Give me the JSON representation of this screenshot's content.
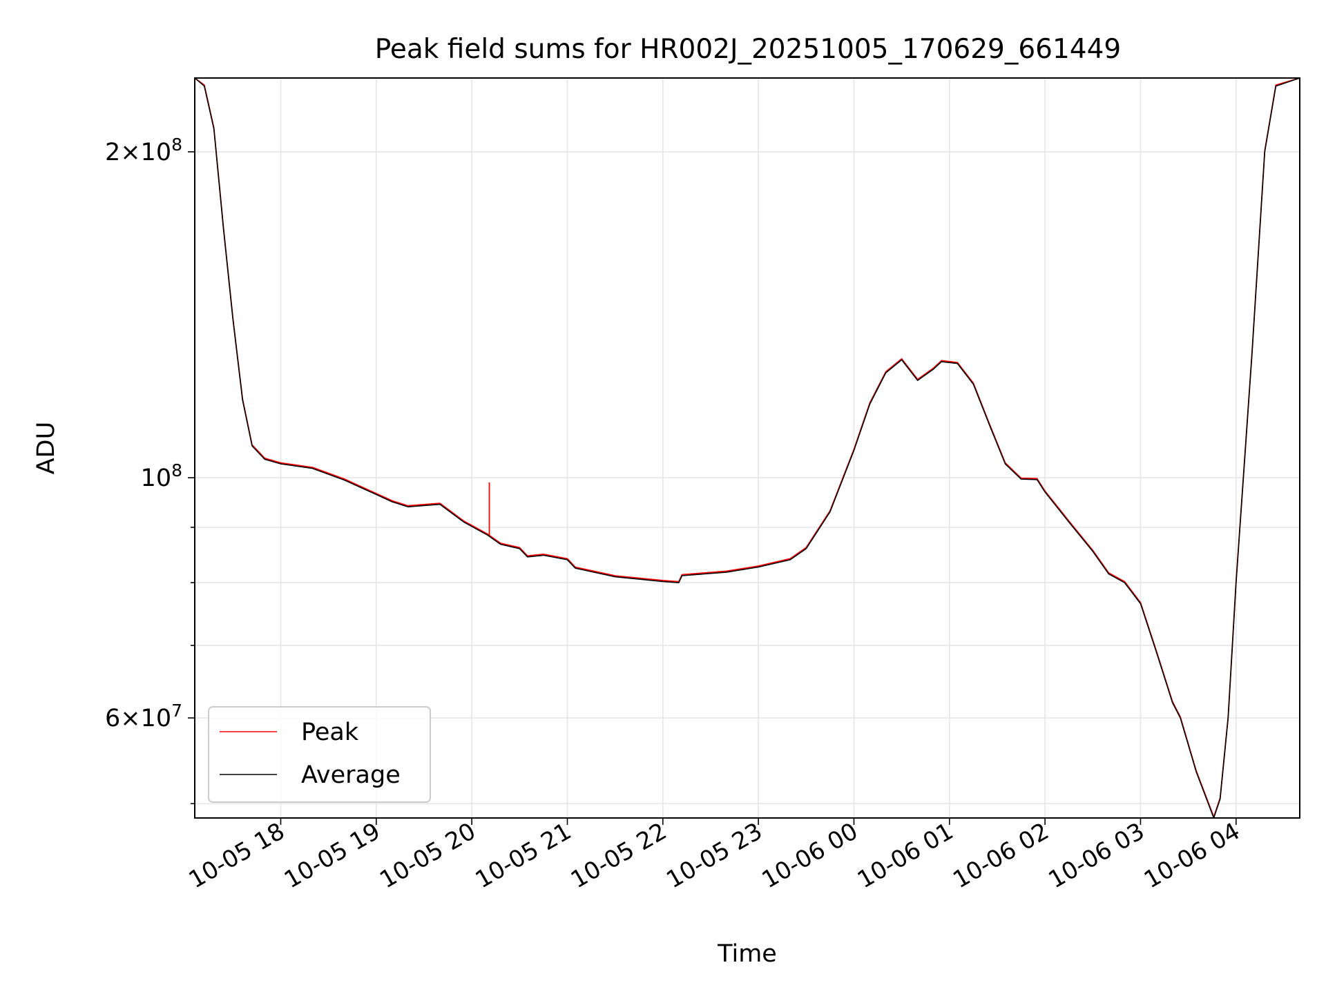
{
  "chart_data": {
    "type": "line",
    "title": "Peak field sums for HR002J_20251005_170629_661449",
    "xlabel": "Time",
    "ylabel": "ADU",
    "x_axis": {
      "type": "datetime",
      "range": [
        "2025-10-05 17:06",
        "2025-10-06 04:40"
      ],
      "tick_labels": [
        "10-05 18",
        "10-05 19",
        "10-05 20",
        "10-05 21",
        "10-05 22",
        "10-05 23",
        "10-06 00",
        "10-06 01",
        "10-06 02",
        "10-06 03",
        "10-06 04"
      ],
      "tick_values": [
        "2025-10-05 18:00",
        "2025-10-05 19:00",
        "2025-10-05 20:00",
        "2025-10-05 21:00",
        "2025-10-05 22:00",
        "2025-10-05 23:00",
        "2025-10-06 00:00",
        "2025-10-06 01:00",
        "2025-10-06 02:00",
        "2025-10-06 03:00",
        "2025-10-06 04:00"
      ]
    },
    "y_axis": {
      "scale": "log",
      "range": [
        48500000,
        234000000
      ],
      "major_ticks": [
        {
          "value": 200000000,
          "mantissa": "2",
          "exponent": "8"
        },
        {
          "value": 100000000,
          "mantissa": "",
          "exponent": "8"
        },
        {
          "value": 60000000,
          "mantissa": "6",
          "exponent": "7"
        }
      ],
      "minor_ticks": [
        50000000,
        70000000,
        80000000,
        90000000
      ]
    },
    "grid": true,
    "legend": {
      "position": "lower-left",
      "entries": [
        {
          "label": "Peak",
          "color": "#ff0000"
        },
        {
          "label": "Average",
          "color": "#000000"
        }
      ]
    },
    "series": [
      {
        "name": "Average",
        "color": "#000000",
        "points": [
          [
            "2025-10-05 17:06",
            234000000
          ],
          [
            "2025-10-05 17:12",
            230000000
          ],
          [
            "2025-10-05 17:18",
            210000000
          ],
          [
            "2025-10-05 17:24",
            170000000
          ],
          [
            "2025-10-05 17:30",
            140000000
          ],
          [
            "2025-10-05 17:36",
            118000000
          ],
          [
            "2025-10-05 17:42",
            107000000
          ],
          [
            "2025-10-05 17:50",
            104000000
          ],
          [
            "2025-10-05 18:00",
            103000000
          ],
          [
            "2025-10-05 18:20",
            102000000
          ],
          [
            "2025-10-05 18:40",
            99500000
          ],
          [
            "2025-10-05 19:00",
            96500000
          ],
          [
            "2025-10-05 19:10",
            95000000
          ],
          [
            "2025-10-05 19:20",
            94000000
          ],
          [
            "2025-10-05 19:40",
            94500000
          ],
          [
            "2025-10-05 19:55",
            91000000
          ],
          [
            "2025-10-05 20:10",
            88500000
          ],
          [
            "2025-10-05 20:18",
            86800000
          ],
          [
            "2025-10-05 20:30",
            86000000
          ],
          [
            "2025-10-05 20:35",
            84500000
          ],
          [
            "2025-10-05 20:45",
            84800000
          ],
          [
            "2025-10-05 21:00",
            84000000
          ],
          [
            "2025-10-05 21:05",
            82500000
          ],
          [
            "2025-10-05 21:30",
            81000000
          ],
          [
            "2025-10-05 22:00",
            80200000
          ],
          [
            "2025-10-05 22:10",
            80000000
          ],
          [
            "2025-10-05 22:12",
            81200000
          ],
          [
            "2025-10-05 22:40",
            81800000
          ],
          [
            "2025-10-05 23:00",
            82700000
          ],
          [
            "2025-10-05 23:20",
            84000000
          ],
          [
            "2025-10-05 23:30",
            86000000
          ],
          [
            "2025-10-05 23:45",
            93000000
          ],
          [
            "2025-10-06 00:00",
            106000000
          ],
          [
            "2025-10-06 00:10",
            117000000
          ],
          [
            "2025-10-06 00:20",
            125000000
          ],
          [
            "2025-10-06 00:30",
            128500000
          ],
          [
            "2025-10-06 00:40",
            123000000
          ],
          [
            "2025-10-06 00:50",
            126000000
          ],
          [
            "2025-10-06 00:55",
            128000000
          ],
          [
            "2025-10-06 01:05",
            127500000
          ],
          [
            "2025-10-06 01:15",
            122000000
          ],
          [
            "2025-10-06 01:25",
            112000000
          ],
          [
            "2025-10-06 01:35",
            103000000
          ],
          [
            "2025-10-06 01:45",
            99700000
          ],
          [
            "2025-10-06 01:55",
            99600000
          ],
          [
            "2025-10-06 02:00",
            97000000
          ],
          [
            "2025-10-06 02:15",
            91000000
          ],
          [
            "2025-10-06 02:30",
            85500000
          ],
          [
            "2025-10-06 02:40",
            81500000
          ],
          [
            "2025-10-06 02:50",
            80000000
          ],
          [
            "2025-10-06 03:00",
            76500000
          ],
          [
            "2025-10-06 03:10",
            69000000
          ],
          [
            "2025-10-06 03:20",
            62000000
          ],
          [
            "2025-10-06 03:25",
            60000000
          ],
          [
            "2025-10-06 03:35",
            53500000
          ],
          [
            "2025-10-06 03:46",
            48500000
          ],
          [
            "2025-10-06 03:50",
            50500000
          ],
          [
            "2025-10-06 03:55",
            60000000
          ],
          [
            "2025-10-06 04:00",
            80000000
          ],
          [
            "2025-10-06 04:10",
            130000000
          ],
          [
            "2025-10-06 04:18",
            200000000
          ],
          [
            "2025-10-06 04:25",
            230000000
          ],
          [
            "2025-10-06 04:40",
            234000000
          ]
        ]
      },
      {
        "name": "Peak",
        "color": "#ff0000",
        "note_spike": "2025-10-05 20:11",
        "spike_value": 99000000
      }
    ]
  }
}
